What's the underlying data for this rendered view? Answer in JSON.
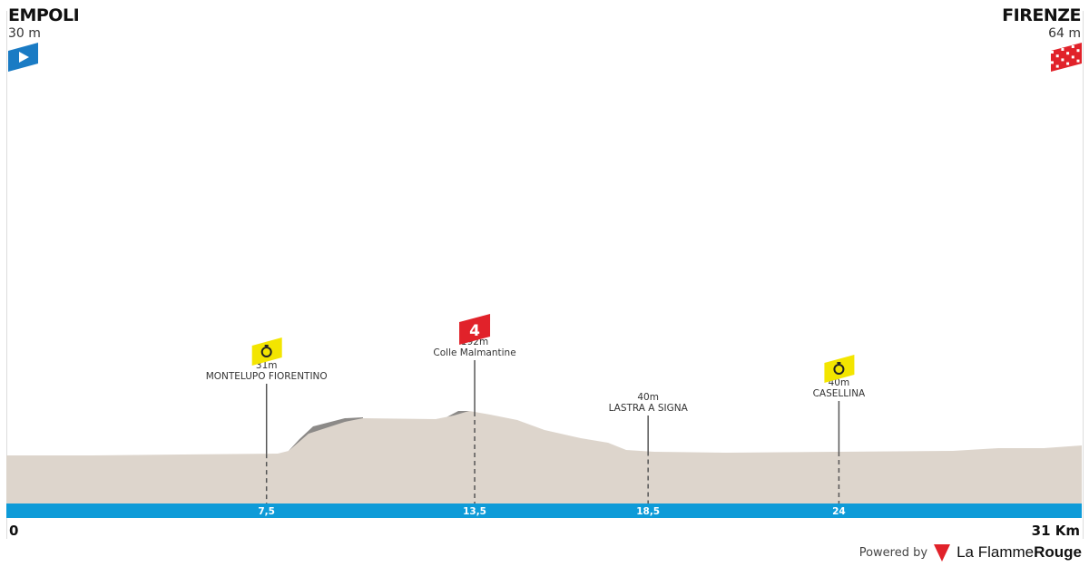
{
  "start": {
    "name": "EMPOLI",
    "altitude": "30 m",
    "icon": "start-flag-icon",
    "color": "#1a7bc4"
  },
  "finish": {
    "name": "FIRENZE",
    "altitude": "64 m",
    "icon": "checkered-flag-icon",
    "color": "#e1222a"
  },
  "distance": {
    "start_label": "0",
    "end_label": "31 Km",
    "total_km": 31
  },
  "waypoints": [
    {
      "km": 7.5,
      "km_label": "7,5",
      "altitude_label": "31m",
      "altitude": 31,
      "name": "MONTELUPO FIORENTINO",
      "type": "intermediate-sprint",
      "icon": "stopwatch-icon"
    },
    {
      "km": 13.5,
      "km_label": "13,5",
      "altitude_label": "192m",
      "altitude": 192,
      "name": "Colle Malmantine",
      "type": "climb",
      "category": "4"
    },
    {
      "km": 18.5,
      "km_label": "18,5",
      "altitude_label": "40m",
      "altitude": 40,
      "name": "LASTRA A SIGNA",
      "type": "place"
    },
    {
      "km": 24,
      "km_label": "24",
      "altitude_label": "40m",
      "altitude": 40,
      "name": "CASELLINA",
      "type": "intermediate-sprint",
      "icon": "stopwatch-icon"
    }
  ],
  "colors": {
    "terrain": "#ddd5cc",
    "slope": "#8c8a88",
    "distance_bar": "#0e9bd8",
    "sprint": "#f3e500",
    "climb": "#e1222a"
  },
  "footer": {
    "powered_by": "Powered by",
    "brand_light": "La Flamme",
    "brand_bold": "Rouge"
  }
}
